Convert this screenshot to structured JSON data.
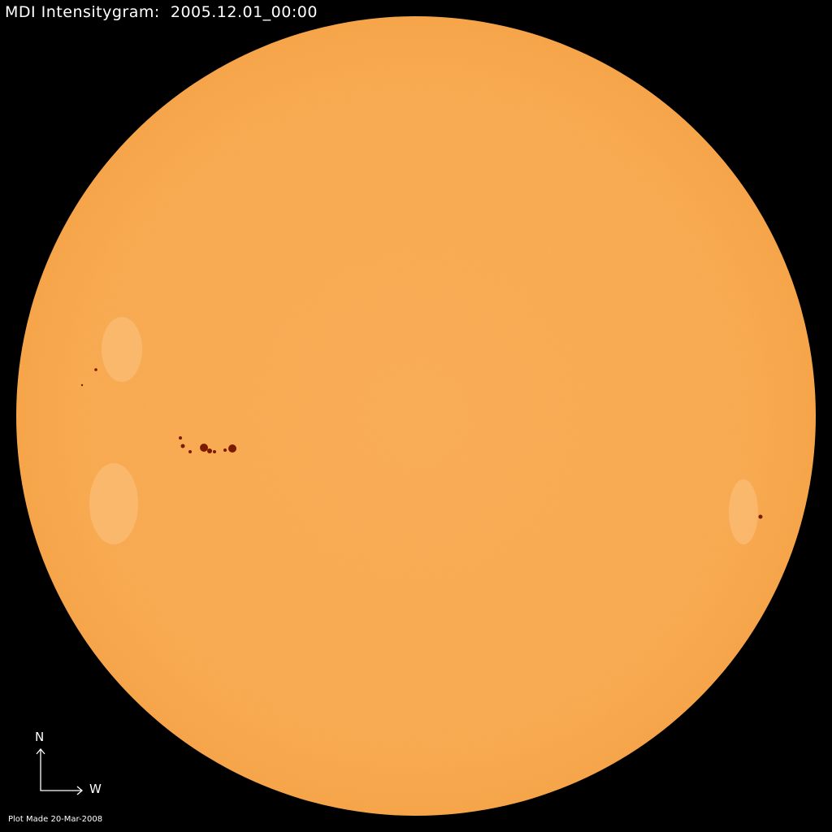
{
  "title": "MDI Intensitygram:  2005.12.01_00:00",
  "compass": {
    "north_label": "N",
    "west_label": "W"
  },
  "footer": "Plot Made 20-Mar-2008",
  "colors": {
    "background": "#000000",
    "disk": "#f9a94e",
    "sunspot": "#7a1a00",
    "text": "#ffffff"
  }
}
